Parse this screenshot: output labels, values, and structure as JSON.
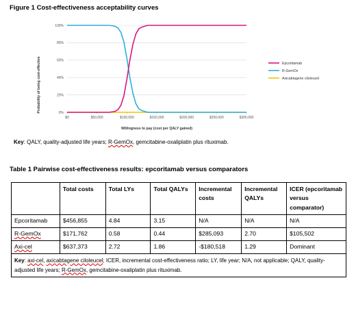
{
  "figure_title": "Figure 1 Cost-effectiveness acceptability curves",
  "figure_key": {
    "label": "Key",
    "text_prefix": ": QALY, quality-adjusted life years; ",
    "term": "R-GemOx",
    "text_suffix": ", gemcitabine-oxaliplatin plus rituximab."
  },
  "chart_data": {
    "type": "line",
    "title": "",
    "xlabel": "Willingness to pay (cost per QALY gained)",
    "ylabel": "Probability of being cost-effective",
    "xlim": [
      0,
      300000
    ],
    "ylim": [
      0,
      1
    ],
    "x_ticks": [
      "$0",
      "$50,000",
      "$100,000",
      "$150,000",
      "$200,000",
      "$250,000",
      "$300,000"
    ],
    "y_ticks": [
      "0%",
      "20%",
      "40%",
      "60%",
      "80%",
      "100%"
    ],
    "grid": "horizontal",
    "legend_position": "right",
    "series": [
      {
        "name": "Epcoritamab",
        "color": "#d6177f",
        "x": [
          0,
          50000,
          70000,
          80000,
          85000,
          90000,
          95000,
          100000,
          105000,
          110000,
          115000,
          120000,
          125000,
          130000,
          135000,
          140000,
          150000,
          200000,
          250000,
          300000
        ],
        "y": [
          0,
          0,
          0,
          0.01,
          0.03,
          0.08,
          0.19,
          0.38,
          0.6,
          0.78,
          0.9,
          0.96,
          0.98,
          0.99,
          1,
          1,
          1,
          1,
          1,
          1
        ]
      },
      {
        "name": "R-GemOx",
        "color": "#2ab0dd",
        "x": [
          0,
          50000,
          70000,
          80000,
          85000,
          90000,
          95000,
          100000,
          105000,
          110000,
          115000,
          120000,
          125000,
          130000,
          135000,
          140000,
          150000,
          200000,
          250000,
          300000
        ],
        "y": [
          1,
          1,
          1,
          0.99,
          0.97,
          0.92,
          0.81,
          0.62,
          0.4,
          0.22,
          0.1,
          0.04,
          0.02,
          0.01,
          0,
          0,
          0,
          0,
          0,
          0
        ]
      },
      {
        "name": "Axicabtagene ciloleucel",
        "color": "#f2c200",
        "x": [
          0,
          300000
        ],
        "y": [
          0,
          0
        ]
      }
    ]
  },
  "table_title": "Table 1 Pairwise cost-effectiveness results: epcoritamab versus comparators",
  "table": {
    "headers": [
      "",
      "Total costs",
      "Total LYs",
      "Total QALYs",
      "Incremental costs",
      "Incremental QALYs",
      "ICER (epcoritamab versus comparator)"
    ],
    "rows": [
      [
        "Epcoritamab",
        "$456,855",
        "4.84",
        "3.15",
        "N/A",
        "N/A",
        "N/A"
      ],
      [
        "R-GemOx",
        "$171,762",
        "0.58",
        "0.44",
        "$285,093",
        "2.70",
        "$105,502"
      ],
      [
        "Axi-cel",
        "$637,373",
        "2.72",
        "1.86",
        "-$180,518",
        "1.29",
        "Dominant"
      ]
    ],
    "key": {
      "label": "Key",
      "sep": ": ",
      "term1": "axi-cel",
      "sep2": ", ",
      "term2": "axicabtagene ciloleucel",
      "middle": "; ICER, incremental cost-effectiveness ratio; LY, life year; N/A, not applicable; QALY, quality-adjusted life years; ",
      "term3": "R-GemOx",
      "suffix": ", gemcitabine-oxaliplatin plus rituximab."
    }
  }
}
